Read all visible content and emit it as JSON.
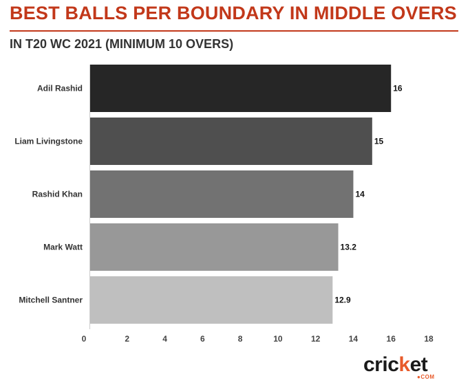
{
  "header": {
    "title": "BEST BALLS PER BOUNDARY IN MIDDLE OVERS",
    "subtitle": "IN T20 WC 2021 (MINIMUM 10 OVERS)"
  },
  "logo": {
    "text_main": "cricket",
    "text_sub": "COM"
  },
  "chart_data": {
    "type": "bar",
    "orientation": "horizontal",
    "title": "BEST BALLS PER BOUNDARY IN MIDDLE OVERS",
    "subtitle": "IN T20 WC 2021 (MINIMUM 10 OVERS)",
    "categories": [
      "Adil Rashid",
      "Liam Livingstone",
      "Rashid Khan",
      "Mark Watt",
      "Mitchell Santner"
    ],
    "values": [
      16,
      15,
      14,
      13.2,
      12.9
    ],
    "value_labels": [
      "16",
      "15",
      "14",
      "13.2",
      "12.9"
    ],
    "bar_colors": [
      "#262626",
      "#4f4f4f",
      "#727272",
      "#989898",
      "#bfbfbf"
    ],
    "xlim": [
      0,
      18
    ],
    "xticks": [
      0,
      2,
      4,
      6,
      8,
      10,
      12,
      14,
      16,
      18
    ],
    "grid": false,
    "legend": "none",
    "xlabel": "",
    "ylabel": ""
  }
}
